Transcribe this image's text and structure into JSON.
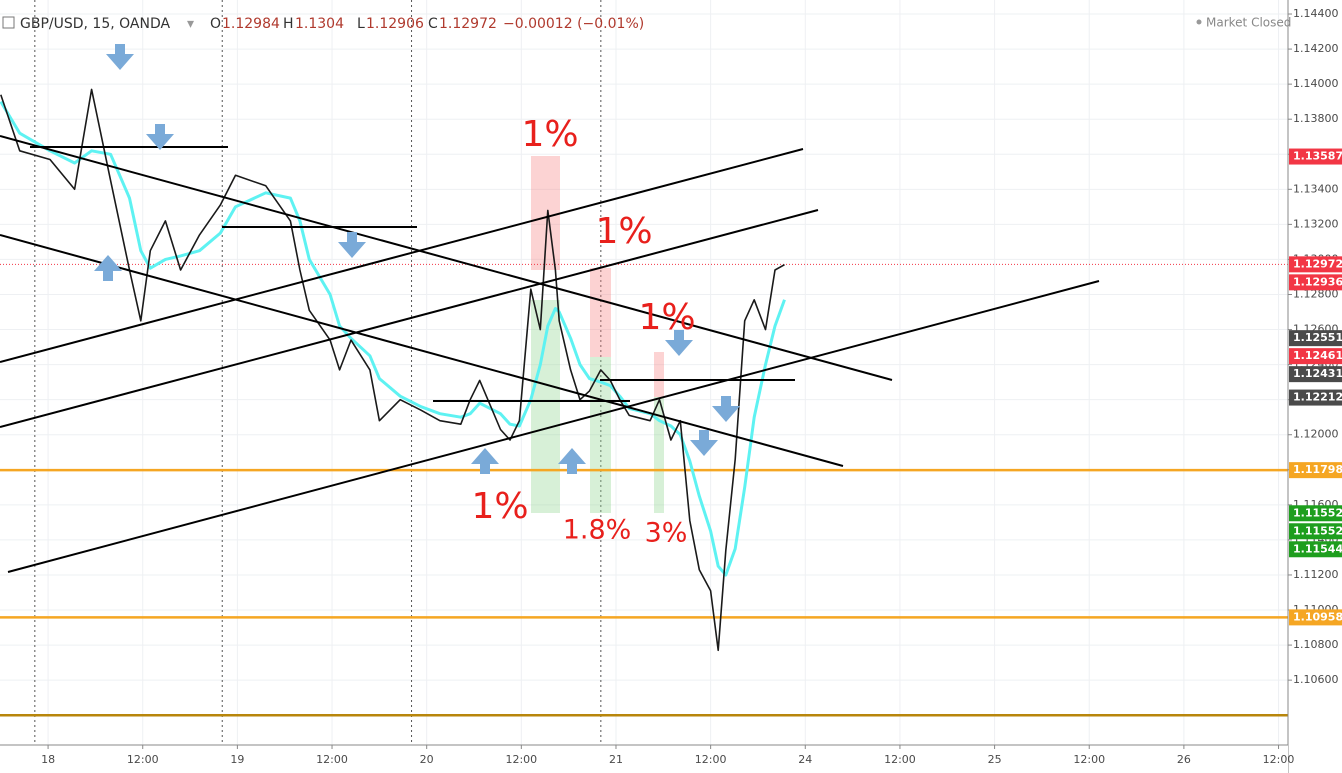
{
  "chart_data": {
    "type": "line",
    "header": {
      "symbol": "GBP/USD, 15, OANDA",
      "ohlc": [
        {
          "key": "O",
          "value": 1.12984
        },
        {
          "key": "H",
          "value": 1.1304
        },
        {
          "key": "L",
          "value": 1.12906
        },
        {
          "key": "C",
          "value": 1.12972
        }
      ],
      "change": "−0.00012 (−0.01%)",
      "status": "Market Closed"
    },
    "x": [
      -0.25,
      -0.15,
      0.01,
      0.14,
      0.23,
      0.33,
      0.43,
      0.49,
      0.54,
      0.62,
      0.7,
      0.8,
      0.91,
      0.99,
      1.15,
      1.28,
      1.33,
      1.38,
      1.49,
      1.54,
      1.6,
      1.7,
      1.75,
      1.86,
      1.97,
      2.07,
      2.18,
      2.23,
      2.28,
      2.39,
      2.44,
      2.49,
      2.55,
      2.6,
      2.64,
      2.68,
      2.7,
      2.76,
      2.81,
      2.86,
      2.92,
      2.97,
      3.02,
      3.07,
      3.18,
      3.23,
      3.29,
      3.34,
      3.39,
      3.44,
      3.5,
      3.54,
      3.58,
      3.63,
      3.68,
      3.73,
      3.79,
      3.84,
      3.89
    ],
    "series": [
      {
        "color": "#1a1a1a",
        "values": [
          1.1394,
          1.1362,
          1.1357,
          1.134,
          1.1397,
          1.1345,
          1.1294,
          1.1265,
          1.1305,
          1.1322,
          1.1294,
          1.1314,
          1.1331,
          1.1348,
          1.1342,
          1.1322,
          1.1294,
          1.1271,
          1.1254,
          1.1237,
          1.1254,
          1.1237,
          1.1208,
          1.122,
          1.1214,
          1.1208,
          1.1206,
          1.122,
          1.1231,
          1.1203,
          1.1197,
          1.1208,
          1.1283,
          1.126,
          1.1328,
          1.1294,
          1.1265,
          1.1237,
          1.122,
          1.1225,
          1.1237,
          1.1231,
          1.122,
          1.1211,
          1.1208,
          1.122,
          1.1197,
          1.1208,
          1.1151,
          1.1123,
          1.1111,
          1.1077,
          1.1134,
          1.1186,
          1.1265,
          1.1277,
          1.126,
          1.1294,
          1.1297
        ]
      },
      {
        "color": "#5ef2f2",
        "values": [
          1.139,
          1.1372,
          1.1362,
          1.1355,
          1.1362,
          1.136,
          1.1335,
          1.1305,
          1.1295,
          1.13,
          1.1302,
          1.1305,
          1.1315,
          1.133,
          1.1338,
          1.1335,
          1.1322,
          1.13,
          1.128,
          1.1262,
          1.1255,
          1.1245,
          1.1232,
          1.1222,
          1.1216,
          1.1212,
          1.121,
          1.1212,
          1.1218,
          1.1212,
          1.1206,
          1.1205,
          1.122,
          1.124,
          1.1262,
          1.1272,
          1.127,
          1.1255,
          1.124,
          1.1232,
          1.123,
          1.1228,
          1.1222,
          1.1215,
          1.1212,
          1.1208,
          1.1205,
          1.12,
          1.1185,
          1.1165,
          1.1145,
          1.1125,
          1.112,
          1.1135,
          1.117,
          1.121,
          1.124,
          1.1262,
          1.1277
        ]
      }
    ],
    "xlim": [
      -0.254,
      6.55
    ],
    "xticks": [
      {
        "value": 0,
        "label": "18"
      },
      {
        "value": 0.5,
        "label": "12:00"
      },
      {
        "value": 1,
        "label": "19"
      },
      {
        "value": 1.5,
        "label": "12:00"
      },
      {
        "value": 2,
        "label": "20"
      },
      {
        "value": 2.5,
        "label": "12:00"
      },
      {
        "value": 3,
        "label": "21"
      },
      {
        "value": 3.5,
        "label": "12:00"
      },
      {
        "value": 4,
        "label": "24"
      },
      {
        "value": 4.5,
        "label": "12:00"
      },
      {
        "value": 5,
        "label": "25"
      },
      {
        "value": 5.5,
        "label": "12:00"
      },
      {
        "value": 6,
        "label": "26"
      },
      {
        "value": 6.5,
        "label": "12:00"
      }
    ],
    "session_breaks": [
      -0.07,
      0.92,
      1.92,
      2.92
    ],
    "ylim": [
      1.1023,
      1.1448
    ],
    "yticks": [
      {
        "value": 1.144,
        "label": "1.14400"
      },
      {
        "value": 1.142,
        "label": "1.14200"
      },
      {
        "value": 1.14,
        "label": "1.14000"
      },
      {
        "value": 1.138,
        "label": "1.13800"
      },
      {
        "value": 1.136,
        "label": "1.13600"
      },
      {
        "value": 1.134,
        "label": "1.13400"
      },
      {
        "value": 1.132,
        "label": "1.13200"
      },
      {
        "value": 1.13,
        "label": "1.13000"
      },
      {
        "value": 1.128,
        "label": "1.12800"
      },
      {
        "value": 1.126,
        "label": "1.12600"
      },
      {
        "value": 1.124,
        "label": "1.12400"
      },
      {
        "value": 1.122,
        "label": "1.12200"
      },
      {
        "value": 1.12,
        "label": "1.12000"
      },
      {
        "value": 1.118,
        "label": "1.11800"
      },
      {
        "value": 1.116,
        "label": "1.11600"
      },
      {
        "value": 1.114,
        "label": "1.11400"
      },
      {
        "value": 1.112,
        "label": "1.11200"
      },
      {
        "value": 1.11,
        "label": "1.11000"
      },
      {
        "value": 1.108,
        "label": "1.10800"
      },
      {
        "value": 1.106,
        "label": "1.10600"
      }
    ],
    "grid": true,
    "hlines": [
      {
        "value": 1.11798,
        "color": "#f5a623"
      },
      {
        "value": 1.10958,
        "color": "#f5a623"
      },
      {
        "value": 1.104,
        "color": "#b8860b"
      }
    ],
    "price_labels": [
      {
        "value": 1.13587,
        "color": "#f23645"
      },
      {
        "value": 1.12972,
        "color": "#f23645"
      },
      {
        "value": 1.12936,
        "color": "#f23645"
      },
      {
        "value": 1.12551,
        "color": "#4a4a4a"
      },
      {
        "value": 1.12461,
        "color": "#f23645"
      },
      {
        "value": 1.12431,
        "color": "#4a4a4a"
      },
      {
        "value": 1.12212,
        "color": "#4a4a4a"
      },
      {
        "value": 1.11798,
        "color": "#f5a623"
      },
      {
        "value": 1.11552,
        "color": "#1e9e1e"
      },
      {
        "value": 1.11552,
        "color": "#1e9e1e"
      },
      {
        "value": 1.11544,
        "color": "#1e9e1e"
      },
      {
        "value": 1.10958,
        "color": "#f5a623"
      }
    ],
    "annotations": [
      "1%",
      "1%",
      "1%",
      "1%",
      "1.8%",
      "3%"
    ]
  }
}
